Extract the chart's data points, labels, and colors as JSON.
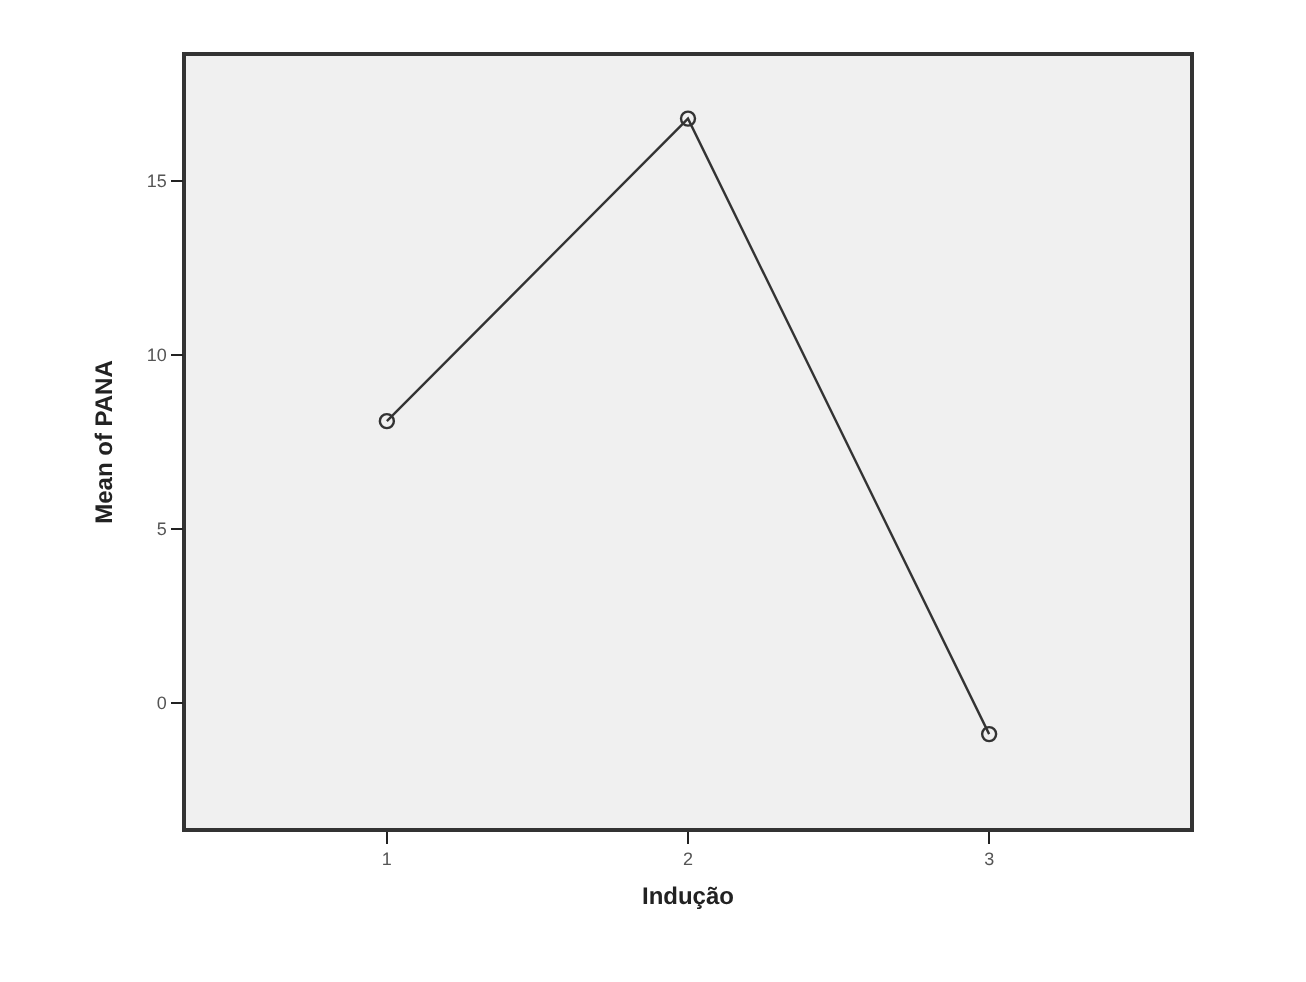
{
  "chart_data": {
    "type": "line",
    "xlabel": "Indução",
    "ylabel": "Mean of PANA",
    "categories": [
      "1",
      "2",
      "3"
    ],
    "series": [
      {
        "color": "#333333",
        "values": [
          8.1,
          16.8,
          -0.9
        ]
      }
    ],
    "ylim": [
      -3.6,
      18.6
    ],
    "yticks": [
      0,
      5,
      10,
      15
    ],
    "grid": false,
    "marker": "circle",
    "line_style": "solid"
  }
}
